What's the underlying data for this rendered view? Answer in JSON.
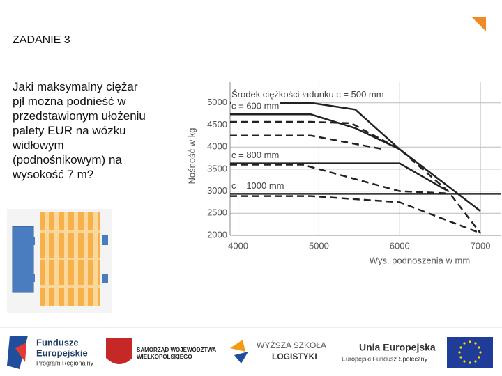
{
  "slide": {
    "title": "ZADANIE 3",
    "question": [
      "Jaki maksymalny ciężar",
      "pjł można podnieść w",
      "przedstawionym ułożeniu",
      "palety EUR na wózku",
      "widłowym",
      "(podnośnikowym) na",
      "wysokość 7 m?"
    ],
    "logos": [
      "Fundusze",
      "Europejskie",
      "Program Regionalny",
      "SAMORZĄD WOJEWÓDZTWA",
      "WIELKOPOLSKIEGO",
      "WYŻSZA SZKOŁA",
      "LOGISTYKI",
      "Unia Europejska",
      "Europejski Fundusz Społeczny"
    ]
  },
  "chart_data": {
    "type": "line",
    "y_label": "Nośność w kg",
    "x_label": "Wys. podnoszenia w mm",
    "xlim": [
      3900,
      7250
    ],
    "ylim": [
      2000,
      5470
    ],
    "xticks": [
      4000,
      5000,
      6000,
      7000
    ],
    "yticks": [
      2000,
      2500,
      3000,
      3500,
      4000,
      4500,
      5000
    ],
    "grid": true,
    "series": [
      {
        "name": "Środek ciężkości ładunku c = 500 mm",
        "color": "#222222",
        "x": [
          3900,
          4900,
          5450,
          6000,
          7000
        ],
        "values": [
          5000,
          5000,
          4850,
          3950,
          2550
        ]
      },
      {
        "color": "#222222",
        "dash": true,
        "x": [
          3900,
          4900,
          5400,
          6000,
          6600,
          7000
        ],
        "values": [
          4570,
          4570,
          4540,
          3950,
          3000,
          2050
        ]
      },
      {
        "name": "c = 600 mm",
        "color": "#222222",
        "x": [
          3900,
          4900,
          5450,
          6000
        ],
        "values": [
          4740,
          4740,
          4430,
          3950
        ]
      },
      {
        "color": "#222222",
        "dash": true,
        "x": [
          3900,
          4900,
          5800
        ],
        "values": [
          4260,
          4260,
          3950
        ]
      },
      {
        "name": "c = 800 mm",
        "color": "#222222",
        "x": [
          3900,
          6000,
          6600
        ],
        "values": [
          3630,
          3630,
          3000
        ]
      },
      {
        "color": "#222222",
        "dash": true,
        "x": [
          3900,
          4800,
          6000,
          6600
        ],
        "values": [
          3600,
          3600,
          3000,
          2950
        ]
      },
      {
        "name": "c = 1000 mm",
        "color": "#222222",
        "x": [
          3900,
          7250
        ],
        "values": [
          2940,
          2940
        ]
      },
      {
        "color": "#222222",
        "dash": true,
        "x": [
          3900,
          4900,
          6000,
          7000
        ],
        "values": [
          2890,
          2890,
          2750,
          2050
        ]
      }
    ]
  }
}
